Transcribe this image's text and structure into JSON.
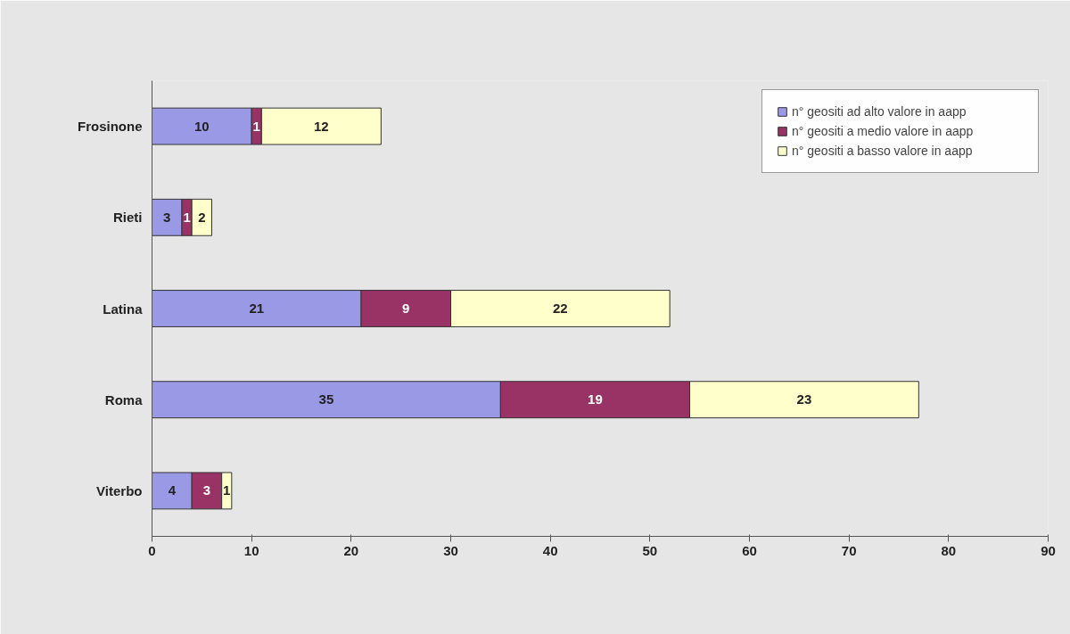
{
  "chart_data": {
    "type": "bar",
    "orientation": "horizontal",
    "stacked": true,
    "categories": [
      "Frosinone",
      "Rieti",
      "Latina",
      "Roma",
      "Viterbo"
    ],
    "series": [
      {
        "name": "n° geositi ad alto valore in aapp",
        "color": "#9999e6",
        "values": [
          10,
          3,
          21,
          35,
          4
        ]
      },
      {
        "name": "n° geositi a medio valore in aapp",
        "color": "#993366",
        "values": [
          1,
          1,
          9,
          19,
          3
        ]
      },
      {
        "name": "n° geositi a basso valore in aapp",
        "color": "#ffffcc",
        "values": [
          12,
          2,
          22,
          23,
          1
        ]
      }
    ],
    "xlim": [
      0,
      90
    ],
    "xticks": [
      0,
      10,
      20,
      30,
      40,
      50,
      60,
      70,
      80,
      90
    ],
    "data_labels": true,
    "legend": "top right"
  }
}
